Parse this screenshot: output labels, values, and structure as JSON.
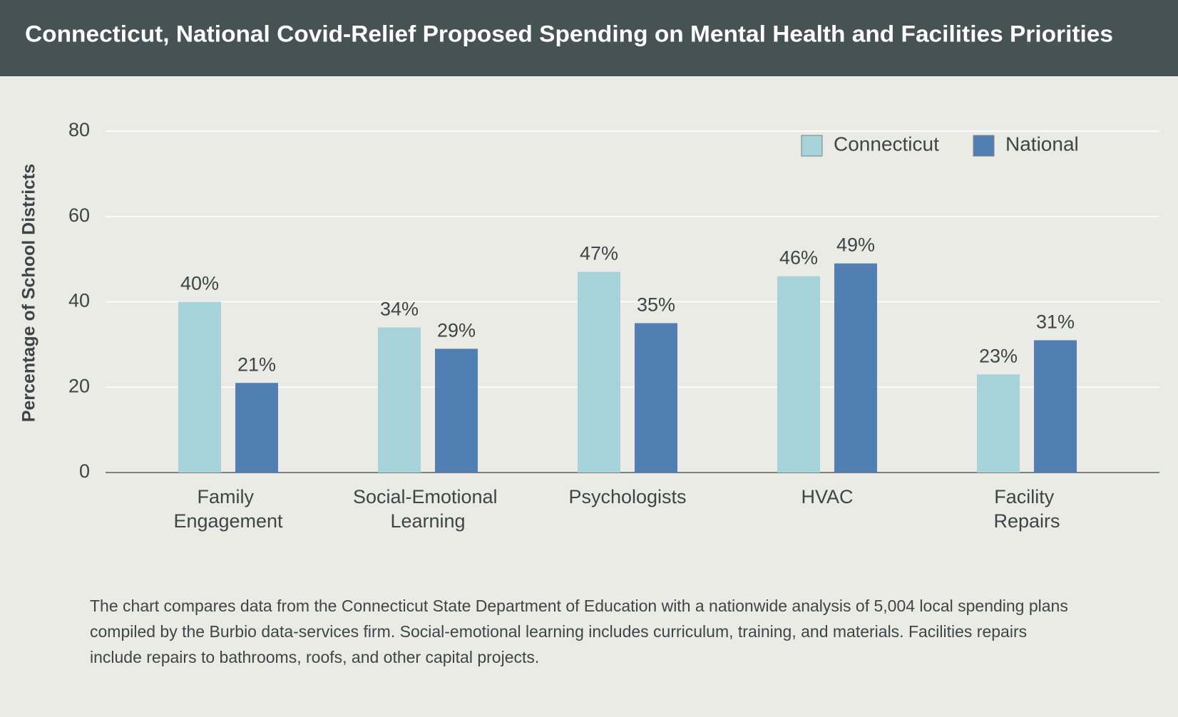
{
  "chart_data": {
    "type": "bar",
    "title": "Connecticut, National Covid-Relief Proposed Spending on Mental Health and Facilities Priorities",
    "y_label": "Percentage of School Districts",
    "categories": [
      "Family Engagement",
      "Social-Emotional Learning",
      "Psychologists",
      "HVAC",
      "Facility Repairs"
    ],
    "series": [
      {
        "name": "Connecticut",
        "color": "#a5d3d9",
        "values": [
          40,
          34,
          47,
          46,
          23
        ],
        "value_labels": [
          "40%",
          "34%",
          "47%",
          "46%",
          "23%"
        ]
      },
      {
        "name": "National",
        "color": "#527fb2",
        "values": [
          21,
          29,
          35,
          49,
          31
        ],
        "value_labels": [
          "21%",
          "29%",
          "35%",
          "49%",
          "31%"
        ]
      }
    ],
    "ylim": [
      0,
      80
    ],
    "yticks": [
      0,
      20,
      40,
      60,
      80
    ],
    "grid": true,
    "legend": "top-right",
    "footnote": [
      "The chart compares data from the Connecticut State Department of Education with a nationwide analysis of 5,004 local spending plans",
      "compiled by the Burbio data-services firm. Social-emotional learning includes curriculum, training, and materials. Facilities repairs",
      "include repairs to bathrooms, roofs, and other capital projects."
    ]
  }
}
